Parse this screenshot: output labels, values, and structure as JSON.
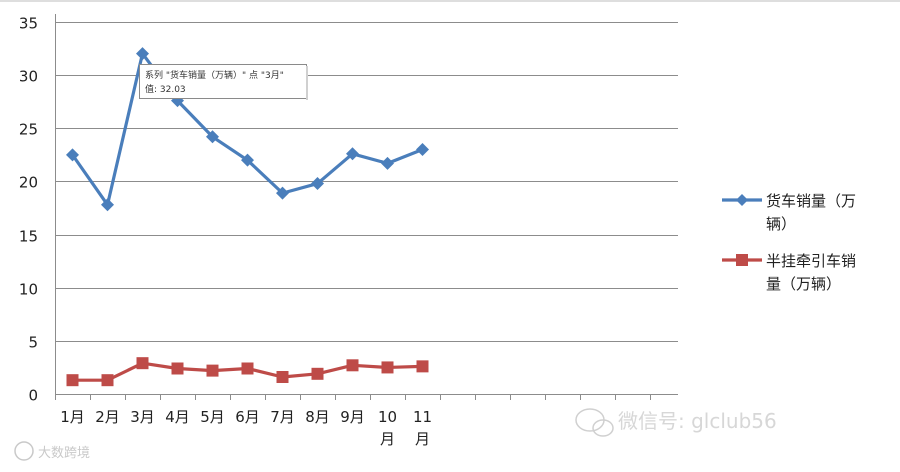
{
  "chart_data": {
    "type": "line",
    "categories": [
      "1月",
      "2月",
      "3月",
      "4月",
      "5月",
      "6月",
      "7月",
      "8月",
      "9月",
      "10月",
      "11月"
    ],
    "series": [
      {
        "name": "货车销量（万辆）",
        "color": "#4a7ebb",
        "marker": "diamond",
        "values": [
          22.5,
          17.8,
          32.03,
          27.6,
          24.2,
          22.0,
          18.9,
          19.8,
          22.6,
          21.7,
          23.0
        ]
      },
      {
        "name": "半挂牵引车销量（万辆）",
        "color": "#be4b48",
        "marker": "square",
        "values": [
          1.3,
          1.3,
          2.9,
          2.4,
          2.2,
          2.4,
          1.6,
          1.9,
          2.7,
          2.5,
          2.6
        ]
      }
    ],
    "yticks": [
      "0",
      "5",
      "10",
      "15",
      "20",
      "25",
      "30",
      "35"
    ],
    "ylim": [
      0,
      35
    ],
    "grid": true,
    "legend_position": "right",
    "legend": [
      {
        "line1": "货车销量（万",
        "line2": "辆）"
      },
      {
        "line1": "半挂牵引车销",
        "line2": "量（万辆）"
      }
    ],
    "tooltip": {
      "line1": "系列 \"货车销量（万辆）\" 点 \"3月\"",
      "line2": "值: 32.03"
    }
  },
  "watermarks": {
    "left": "大数跨境",
    "right": "微信号: glclub56"
  }
}
